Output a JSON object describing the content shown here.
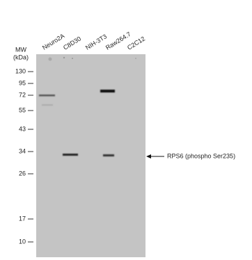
{
  "mw_label": {
    "line1": "MW",
    "line2": "(kDa)"
  },
  "lanes": [
    "Neuro2A",
    "C8D30",
    "NIH-3T3",
    "Raw264.7",
    "C2C12"
  ],
  "markers": [
    "130",
    "95",
    "72",
    "55",
    "43",
    "34",
    "26",
    "17",
    "10"
  ],
  "annotation": "RPS6 (phospho Ser235)"
}
